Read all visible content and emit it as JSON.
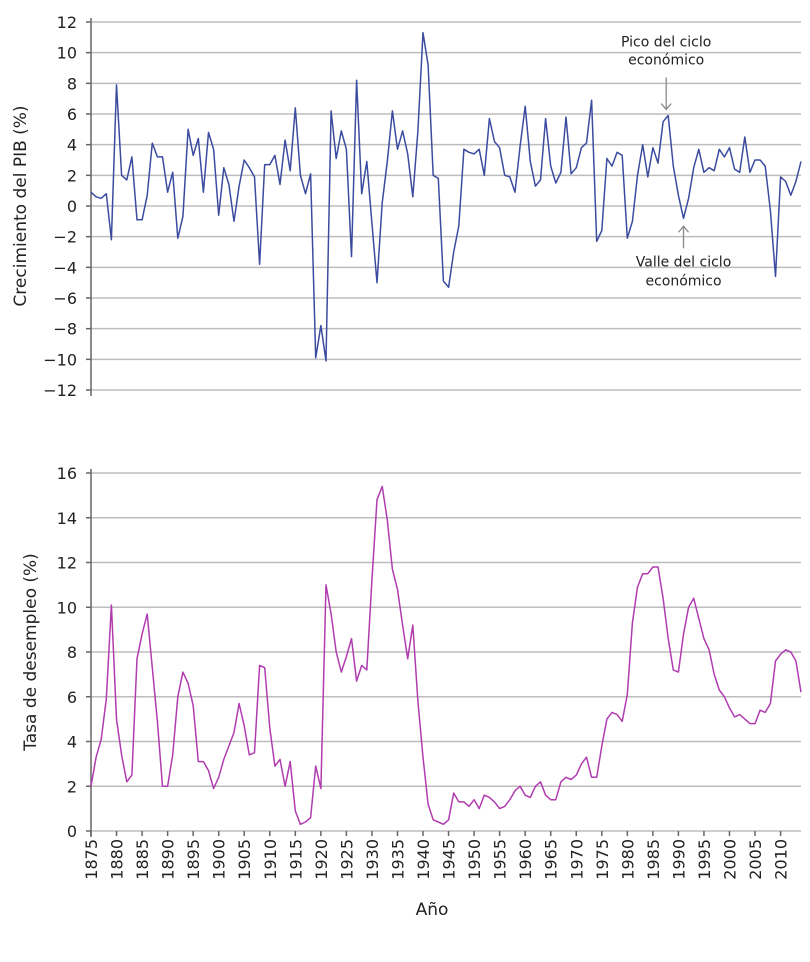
{
  "chart_data": [
    {
      "type": "line",
      "ylabel": "Crecimiento del PIB (%)",
      "ylim": [
        -12,
        12
      ],
      "yticks": [
        -12,
        -10,
        -8,
        -6,
        -4,
        -2,
        0,
        2,
        4,
        6,
        8,
        10,
        12
      ],
      "xlim": [
        1875,
        2014
      ],
      "grid": true,
      "color": "#3b4ba0",
      "x_start": 1875,
      "values": [
        0.9,
        0.6,
        0.5,
        0.8,
        -2.2,
        7.9,
        2.0,
        1.7,
        3.2,
        -0.9,
        -0.9,
        0.7,
        4.1,
        3.2,
        3.2,
        0.9,
        2.2,
        -2.1,
        -0.7,
        5.0,
        3.3,
        4.4,
        0.9,
        4.8,
        3.7,
        -0.6,
        2.5,
        1.4,
        -1.0,
        1.3,
        3.0,
        2.5,
        1.9,
        -3.8,
        2.7,
        2.7,
        3.3,
        1.4,
        4.3,
        2.3,
        6.4,
        2.0,
        0.8,
        2.1,
        -9.9,
        -7.8,
        -10.1,
        6.2,
        3.1,
        4.9,
        3.7,
        -3.3,
        8.2,
        0.8,
        2.9,
        -1.1,
        -5.0,
        0.2,
        2.9,
        6.2,
        3.7,
        4.9,
        3.4,
        0.6,
        4.9,
        11.3,
        9.2,
        2.0,
        1.8,
        -4.9,
        -5.3,
        -3.0,
        -1.3,
        3.7,
        3.5,
        3.4,
        3.7,
        2.0,
        5.7,
        4.2,
        3.8,
        2.0,
        1.9,
        0.9,
        3.9,
        6.5,
        2.9,
        1.3,
        1.7,
        5.7,
        2.6,
        1.5,
        2.2,
        5.8,
        2.1,
        2.5,
        3.8,
        4.1,
        6.9,
        -2.3,
        -1.6,
        3.1,
        2.6,
        3.5,
        3.3,
        -2.1,
        -1.0,
        2.0,
        4.0,
        1.9,
        3.8,
        2.8,
        5.5,
        5.9,
        2.6,
        0.7,
        -0.8,
        0.5,
        2.5,
        3.7,
        2.2,
        2.5,
        2.3,
        3.7,
        3.2,
        3.8,
        2.4,
        2.2,
        4.5,
        2.2,
        3.0,
        3.0,
        2.6,
        -0.3,
        -4.6,
        1.9,
        1.6,
        0.7,
        1.6,
        2.9
      ],
      "annotations": [
        {
          "lines": [
            "Pico del ciclo",
            "económico"
          ],
          "year": 1988,
          "value": 5.9,
          "arrow": "down"
        },
        {
          "lines": [
            "Valle del ciclo",
            "económico"
          ],
          "year": 1991,
          "value": -0.8,
          "arrow": "up"
        }
      ]
    },
    {
      "type": "line",
      "ylabel": "Tasa de desempleo (%)",
      "xlabel": "Año",
      "ylim": [
        0,
        16
      ],
      "yticks": [
        0,
        2,
        4,
        6,
        8,
        10,
        12,
        14,
        16
      ],
      "xlim": [
        1875,
        2014
      ],
      "xticks": [
        "1875",
        "1880",
        "1885",
        "1890",
        "1895",
        "1900",
        "1905",
        "1910",
        "1915",
        "1920",
        "1925",
        "1930",
        "1935",
        "1940",
        "1945",
        "1950",
        "1955",
        "1960",
        "1965",
        "1970",
        "1975",
        "1980",
        "1985",
        "1990",
        "1995",
        "2000",
        "2005",
        "2010"
      ],
      "grid": true,
      "color": "#b03cb0",
      "x_start": 1875,
      "values": [
        2.0,
        3.3,
        4.1,
        5.9,
        10.1,
        5.0,
        3.4,
        2.2,
        2.5,
        7.7,
        8.8,
        9.7,
        7.3,
        4.9,
        2.0,
        2.0,
        3.4,
        6.0,
        7.1,
        6.6,
        5.6,
        3.1,
        3.1,
        2.7,
        1.9,
        2.4,
        3.2,
        3.8,
        4.4,
        5.7,
        4.7,
        3.4,
        3.5,
        7.4,
        7.3,
        4.6,
        2.9,
        3.2,
        2.0,
        3.1,
        0.9,
        0.3,
        0.4,
        0.6,
        2.9,
        1.9,
        11.0,
        9.7,
        8.0,
        7.1,
        7.8,
        8.6,
        6.7,
        7.4,
        7.2,
        11.2,
        14.8,
        15.4,
        13.9,
        11.7,
        10.8,
        9.2,
        7.7,
        9.2,
        5.8,
        3.3,
        1.2,
        0.5,
        0.4,
        0.3,
        0.5,
        1.7,
        1.3,
        1.3,
        1.1,
        1.4,
        1.0,
        1.6,
        1.5,
        1.3,
        1.0,
        1.1,
        1.4,
        1.8,
        2.0,
        1.6,
        1.5,
        2.0,
        2.2,
        1.6,
        1.4,
        1.4,
        2.2,
        2.4,
        2.3,
        2.5,
        3.0,
        3.3,
        2.4,
        2.4,
        3.8,
        5.0,
        5.3,
        5.2,
        4.9,
        6.1,
        9.3,
        10.9,
        11.5,
        11.5,
        11.8,
        11.8,
        10.4,
        8.6,
        7.2,
        7.1,
        8.8,
        10.0,
        10.4,
        9.5,
        8.6,
        8.1,
        7.0,
        6.3,
        6.0,
        5.5,
        5.1,
        5.2,
        5.0,
        4.8,
        4.8,
        5.4,
        5.3,
        5.7,
        7.6,
        7.9,
        8.1,
        8.0,
        7.6,
        6.2
      ]
    }
  ]
}
